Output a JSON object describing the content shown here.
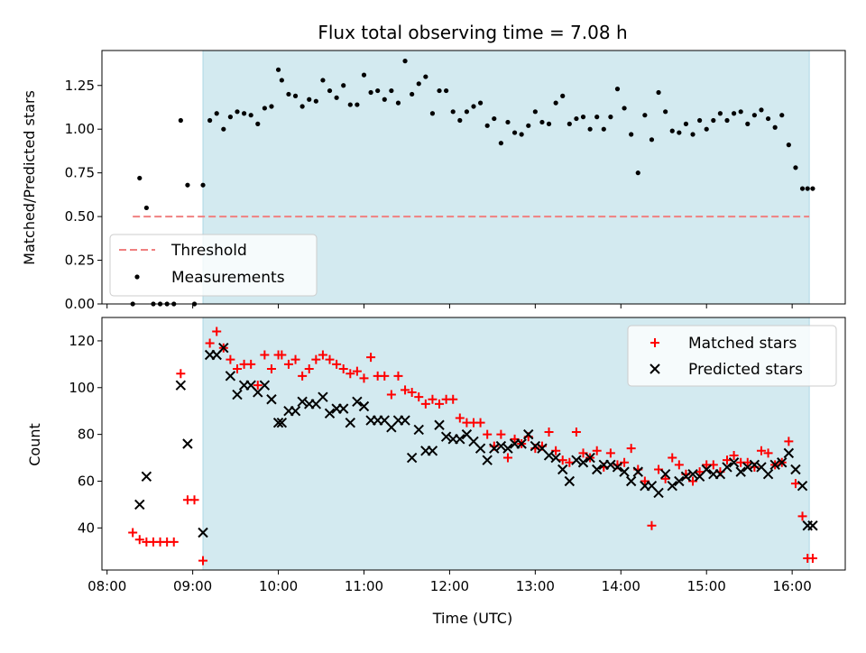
{
  "chart_data": [
    {
      "type": "scatter",
      "title": "Flux total observing time = 7.08 h",
      "ylabel": "Matched/Predicted stars",
      "ylim": [
        0,
        1.45
      ],
      "yticks": [
        "0.00",
        "0.25",
        "0.50",
        "0.75",
        "1.00",
        "1.25"
      ],
      "xlim": [
        7.94,
        16.62
      ],
      "highlight_span": [
        9.12,
        16.2
      ],
      "highlight_color": "#d3eaf0",
      "grid": false,
      "legend_position": "lower-left",
      "threshold": {
        "name": "Threshold",
        "value": 0.5,
        "x_range": [
          8.3,
          16.2
        ],
        "color": "#f08080"
      },
      "series": [
        {
          "name": "Measurements",
          "color": "#000000",
          "x": [
            8.3,
            8.38,
            8.46,
            8.54,
            8.62,
            8.7,
            8.78,
            8.86,
            8.94,
            9.02,
            9.12,
            9.2,
            9.28,
            9.36,
            9.44,
            9.52,
            9.6,
            9.68,
            9.76,
            9.84,
            9.92,
            10.0,
            10.04,
            10.12,
            10.2,
            10.28,
            10.36,
            10.44,
            10.52,
            10.6,
            10.68,
            10.76,
            10.84,
            10.92,
            11.0,
            11.08,
            11.16,
            11.24,
            11.32,
            11.4,
            11.48,
            11.56,
            11.64,
            11.72,
            11.8,
            11.88,
            11.96,
            12.04,
            12.12,
            12.2,
            12.28,
            12.36,
            12.44,
            12.52,
            12.6,
            12.68,
            12.76,
            12.84,
            12.92,
            13.0,
            13.08,
            13.16,
            13.24,
            13.32,
            13.4,
            13.48,
            13.56,
            13.64,
            13.72,
            13.8,
            13.88,
            13.96,
            14.04,
            14.12,
            14.2,
            14.28,
            14.36,
            14.44,
            14.52,
            14.6,
            14.68,
            14.76,
            14.84,
            14.92,
            15.0,
            15.08,
            15.16,
            15.24,
            15.32,
            15.4,
            15.48,
            15.56,
            15.64,
            15.72,
            15.8,
            15.88,
            15.96,
            16.04,
            16.12,
            16.18,
            16.24
          ],
          "y": [
            0.0,
            0.72,
            0.55,
            0.0,
            0.0,
            0.0,
            0.0,
            1.05,
            0.68,
            0.0,
            0.68,
            1.05,
            1.09,
            1.0,
            1.07,
            1.1,
            1.09,
            1.08,
            1.03,
            1.12,
            1.13,
            1.34,
            1.28,
            1.2,
            1.19,
            1.13,
            1.17,
            1.16,
            1.28,
            1.22,
            1.18,
            1.25,
            1.14,
            1.14,
            1.31,
            1.21,
            1.22,
            1.17,
            1.22,
            1.15,
            1.39,
            1.2,
            1.26,
            1.3,
            1.09,
            1.22,
            1.22,
            1.1,
            1.05,
            1.1,
            1.13,
            1.15,
            1.02,
            1.06,
            0.92,
            1.04,
            0.98,
            0.97,
            1.02,
            1.1,
            1.04,
            1.03,
            1.15,
            1.19,
            1.03,
            1.06,
            1.07,
            1.0,
            1.07,
            1.0,
            1.07,
            1.23,
            1.12,
            0.97,
            0.75,
            1.08,
            0.94,
            1.21,
            1.1,
            0.99,
            0.98,
            1.03,
            0.97,
            1.05,
            1.0,
            1.05,
            1.09,
            1.05,
            1.09,
            1.1,
            1.03,
            1.08,
            1.11,
            1.06,
            1.01,
            1.08,
            0.91,
            0.78,
            0.66,
            0.66,
            0.66
          ]
        }
      ]
    },
    {
      "type": "scatter",
      "xlabel": "Time (UTC)",
      "ylabel": "Count",
      "ylim": [
        22,
        130
      ],
      "yticks": [
        "40",
        "60",
        "80",
        "100",
        "120"
      ],
      "xlim": [
        7.94,
        16.62
      ],
      "xticks": [
        "08:00",
        "09:00",
        "10:00",
        "11:00",
        "12:00",
        "13:00",
        "14:00",
        "15:00",
        "16:00"
      ],
      "highlight_span": [
        9.12,
        16.2
      ],
      "highlight_color": "#d3eaf0",
      "grid": false,
      "legend_position": "top-right",
      "series": [
        {
          "name": "Matched stars",
          "marker": "plus",
          "color": "#ff0000",
          "x": [
            8.3,
            8.38,
            8.46,
            8.54,
            8.62,
            8.7,
            8.78,
            8.86,
            8.94,
            9.02,
            9.12,
            9.2,
            9.28,
            9.36,
            9.44,
            9.52,
            9.6,
            9.68,
            9.76,
            9.84,
            9.92,
            10.0,
            10.04,
            10.12,
            10.2,
            10.28,
            10.36,
            10.44,
            10.52,
            10.6,
            10.68,
            10.76,
            10.84,
            10.92,
            11.0,
            11.08,
            11.16,
            11.24,
            11.32,
            11.4,
            11.48,
            11.56,
            11.64,
            11.72,
            11.8,
            11.88,
            11.96,
            12.04,
            12.12,
            12.2,
            12.28,
            12.36,
            12.44,
            12.52,
            12.6,
            12.68,
            12.76,
            12.84,
            12.92,
            13.0,
            13.08,
            13.16,
            13.24,
            13.32,
            13.4,
            13.48,
            13.56,
            13.64,
            13.72,
            13.8,
            13.88,
            13.96,
            14.04,
            14.12,
            14.2,
            14.28,
            14.36,
            14.44,
            14.52,
            14.6,
            14.68,
            14.76,
            14.84,
            14.92,
            15.0,
            15.08,
            15.16,
            15.24,
            15.32,
            15.4,
            15.48,
            15.56,
            15.64,
            15.72,
            15.8,
            15.88,
            15.96,
            16.04,
            16.12,
            16.18,
            16.24
          ],
          "y": [
            38,
            35,
            34,
            34,
            34,
            34,
            34,
            106,
            52,
            52,
            26,
            119,
            124,
            117,
            112,
            108,
            110,
            110,
            101,
            114,
            108,
            114,
            114,
            110,
            112,
            105,
            108,
            112,
            114,
            112,
            110,
            108,
            106,
            107,
            104,
            113,
            105,
            105,
            97,
            105,
            99,
            98,
            96,
            93,
            95,
            93,
            95,
            95,
            87,
            85,
            85,
            85,
            80,
            75,
            80,
            70,
            78,
            76,
            79,
            74,
            75,
            81,
            73,
            69,
            68,
            81,
            72,
            70,
            73,
            66,
            72,
            67,
            68,
            74,
            65,
            60,
            41,
            65,
            61,
            70,
            67,
            63,
            60,
            64,
            67,
            67,
            64,
            69,
            71,
            68,
            68,
            66,
            73,
            72,
            67,
            68,
            77,
            59,
            45,
            27,
            27
          ]
        },
        {
          "name": "Predicted stars",
          "marker": "x",
          "color": "#000000",
          "x": [
            8.3,
            8.38,
            8.46,
            8.54,
            8.62,
            8.7,
            8.78,
            8.86,
            8.94,
            9.02,
            9.12,
            9.2,
            9.28,
            9.36,
            9.44,
            9.52,
            9.6,
            9.68,
            9.76,
            9.84,
            9.92,
            10.0,
            10.04,
            10.12,
            10.2,
            10.28,
            10.36,
            10.44,
            10.52,
            10.6,
            10.68,
            10.76,
            10.84,
            10.92,
            11.0,
            11.08,
            11.16,
            11.24,
            11.32,
            11.4,
            11.48,
            11.56,
            11.64,
            11.72,
            11.8,
            11.88,
            11.96,
            12.04,
            12.12,
            12.2,
            12.28,
            12.36,
            12.44,
            12.52,
            12.6,
            12.68,
            12.76,
            12.84,
            12.92,
            13.0,
            13.08,
            13.16,
            13.24,
            13.32,
            13.4,
            13.48,
            13.56,
            13.64,
            13.72,
            13.8,
            13.88,
            13.96,
            14.04,
            14.12,
            14.2,
            14.28,
            14.36,
            14.44,
            14.52,
            14.6,
            14.68,
            14.76,
            14.84,
            14.92,
            15.0,
            15.08,
            15.16,
            15.24,
            15.32,
            15.4,
            15.48,
            15.56,
            15.64,
            15.72,
            15.8,
            15.88,
            15.96,
            16.04,
            16.12,
            16.18,
            16.24
          ],
          "y": [
            null,
            50,
            62,
            null,
            null,
            null,
            null,
            101,
            76,
            null,
            38,
            114,
            114,
            117,
            105,
            97,
            101,
            101,
            98,
            101,
            95,
            85,
            85,
            90,
            90,
            94,
            93,
            93,
            96,
            89,
            91,
            91,
            85,
            94,
            92,
            86,
            86,
            86,
            83,
            86,
            86,
            70,
            82,
            73,
            73,
            84,
            79,
            78,
            78,
            80,
            77,
            74,
            69,
            74,
            75,
            74,
            76,
            76,
            80,
            75,
            74,
            71,
            70,
            65,
            60,
            69,
            68,
            70,
            65,
            67,
            67,
            66,
            64,
            60,
            64,
            58,
            58,
            55,
            63,
            58,
            60,
            62,
            63,
            62,
            65,
            63,
            63,
            66,
            68,
            64,
            66,
            67,
            66,
            63,
            67,
            68,
            72,
            65,
            58,
            41,
            41
          ]
        }
      ]
    }
  ]
}
